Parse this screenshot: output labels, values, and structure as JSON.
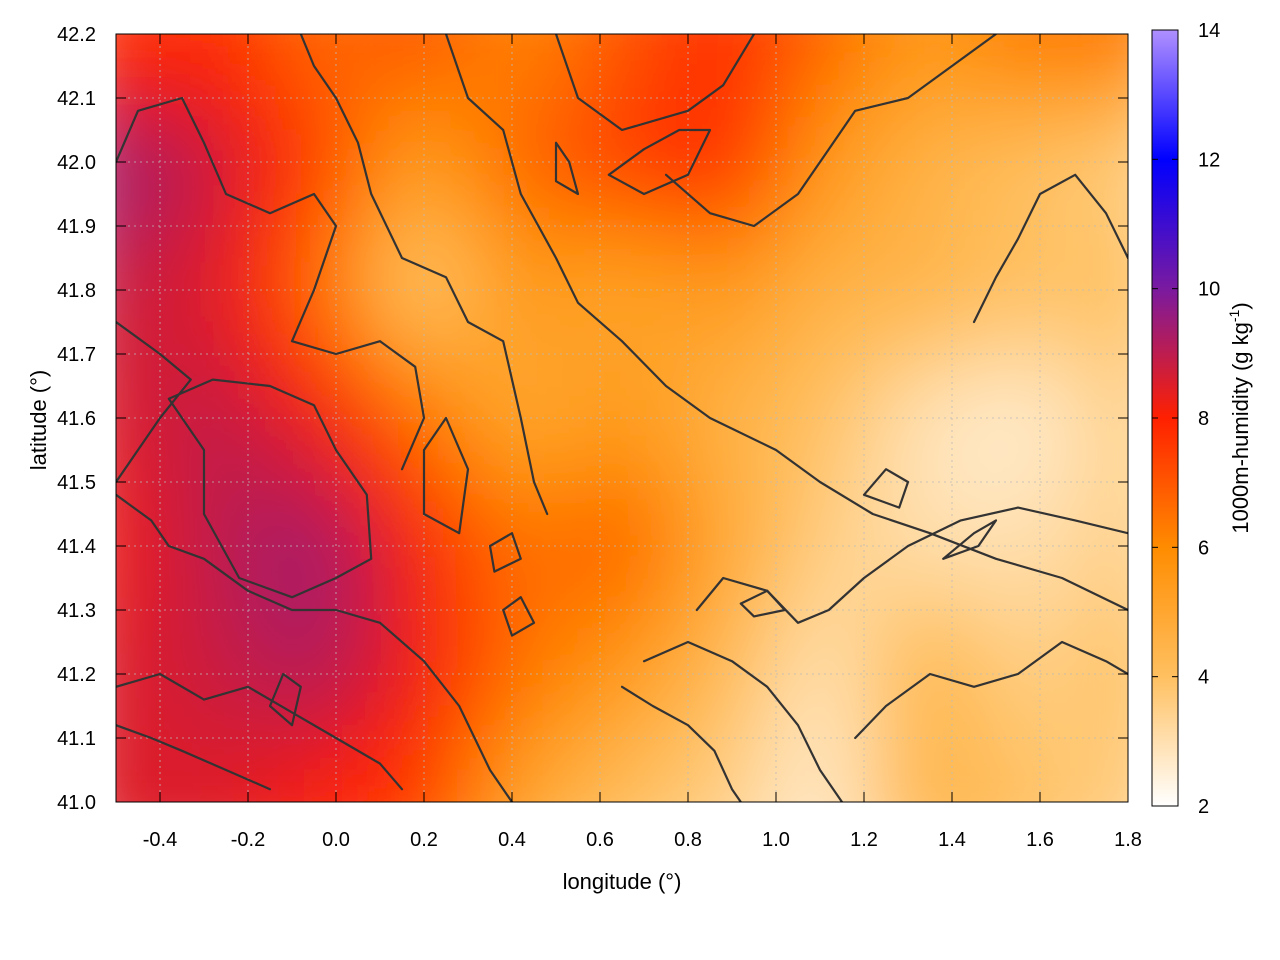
{
  "chart_data": {
    "type": "heatmap",
    "title": "",
    "xlabel": "longitude (°)",
    "ylabel": "latitude (°)",
    "colorbar_label": "1000m-humidity (g kg",
    "colorbar_label_sup": "-1",
    "colorbar_label_end": ")",
    "xlim": [
      -0.5,
      1.8
    ],
    "ylim": [
      41.0,
      42.2
    ],
    "clim": [
      2,
      14
    ],
    "x_ticks": [
      "-0.4",
      "-0.2",
      "0.0",
      "0.2",
      "0.4",
      "0.6",
      "0.8",
      "1.0",
      "1.2",
      "1.4",
      "1.6",
      "1.8"
    ],
    "x_tick_values": [
      -0.4,
      -0.2,
      0.0,
      0.2,
      0.4,
      0.6,
      0.8,
      1.0,
      1.2,
      1.4,
      1.6,
      1.8
    ],
    "y_ticks": [
      "41.0",
      "41.1",
      "41.2",
      "41.3",
      "41.4",
      "41.5",
      "41.6",
      "41.7",
      "41.8",
      "41.9",
      "42.0",
      "42.1",
      "42.2"
    ],
    "y_tick_values": [
      41.0,
      41.1,
      41.2,
      41.3,
      41.4,
      41.5,
      41.6,
      41.7,
      41.8,
      41.9,
      42.0,
      42.1,
      42.2
    ],
    "colorbar_ticks": [
      "2",
      "4",
      "6",
      "8",
      "10",
      "12",
      "14"
    ],
    "colorbar_tick_values": [
      2,
      4,
      6,
      8,
      10,
      12,
      14
    ],
    "colormap": [
      {
        "value": 2,
        "color": "#ffffff"
      },
      {
        "value": 4,
        "color": "#ffc060"
      },
      {
        "value": 6,
        "color": "#ff8c00"
      },
      {
        "value": 8,
        "color": "#ff2000"
      },
      {
        "value": 10,
        "color": "#7a1aa0"
      },
      {
        "value": 12,
        "color": "#0000ff"
      },
      {
        "value": 14,
        "color": "#b090ff"
      }
    ],
    "grid": true,
    "contour_color": "#333333",
    "humidity_field": {
      "lon": [
        -0.5,
        -0.27,
        -0.04,
        0.19,
        0.42,
        0.65,
        0.88,
        1.11,
        1.34,
        1.57,
        1.8
      ],
      "lat": [
        42.2,
        42.0,
        41.8,
        41.6,
        41.4,
        41.2,
        41.0
      ],
      "values": [
        [
          7.5,
          7.8,
          6.5,
          7.2,
          6.0,
          7.0,
          7.8,
          6.8,
          5.5,
          6.5,
          6.5
        ],
        [
          9.5,
          8.8,
          7.5,
          5.2,
          6.8,
          7.5,
          8.0,
          5.5,
          4.5,
          4.0,
          3.5
        ],
        [
          8.8,
          8.5,
          6.5,
          3.5,
          5.5,
          5.0,
          5.5,
          4.5,
          4.5,
          4.0,
          4.0
        ],
        [
          8.5,
          9.0,
          8.2,
          6.5,
          4.8,
          5.5,
          4.5,
          4.0,
          2.8,
          2.5,
          3.5
        ],
        [
          8.2,
          9.0,
          9.5,
          8.0,
          6.5,
          7.0,
          5.0,
          3.5,
          3.0,
          3.0,
          3.5
        ],
        [
          8.5,
          8.8,
          9.2,
          8.2,
          6.5,
          5.5,
          4.2,
          2.8,
          4.5,
          3.5,
          4.0
        ],
        [
          8.5,
          8.5,
          8.0,
          7.5,
          5.0,
          4.0,
          3.5,
          2.5,
          4.5,
          4.0,
          3.5
        ]
      ]
    },
    "contours": [
      [
        [
          -0.5,
          41.18
        ],
        [
          -0.4,
          41.2
        ],
        [
          -0.3,
          41.16
        ],
        [
          -0.2,
          41.18
        ],
        [
          -0.1,
          41.14
        ],
        [
          0.0,
          41.1
        ],
        [
          0.1,
          41.06
        ],
        [
          0.15,
          41.02
        ]
      ],
      [
        [
          -0.5,
          41.12
        ],
        [
          -0.42,
          41.1
        ],
        [
          -0.35,
          41.08
        ],
        [
          -0.25,
          41.05
        ],
        [
          -0.15,
          41.02
        ]
      ],
      [
        [
          -0.5,
          41.48
        ],
        [
          -0.42,
          41.44
        ],
        [
          -0.38,
          41.4
        ],
        [
          -0.3,
          41.38
        ],
        [
          -0.2,
          41.33
        ],
        [
          -0.1,
          41.3
        ],
        [
          0.0,
          41.3
        ],
        [
          0.1,
          41.28
        ],
        [
          0.2,
          41.22
        ],
        [
          0.28,
          41.15
        ],
        [
          0.35,
          41.05
        ],
        [
          0.4,
          41.0
        ]
      ],
      [
        [
          -0.38,
          41.63
        ],
        [
          -0.3,
          41.55
        ],
        [
          -0.3,
          41.45
        ],
        [
          -0.22,
          41.35
        ],
        [
          -0.1,
          41.32
        ],
        [
          0.0,
          41.35
        ],
        [
          0.08,
          41.38
        ],
        [
          0.07,
          41.48
        ],
        [
          0.0,
          41.55
        ],
        [
          -0.05,
          41.62
        ],
        [
          -0.15,
          41.65
        ],
        [
          -0.28,
          41.66
        ],
        [
          -0.38,
          41.63
        ]
      ],
      [
        [
          -0.5,
          41.75
        ],
        [
          -0.4,
          41.7
        ],
        [
          -0.33,
          41.66
        ],
        [
          -0.4,
          41.6
        ],
        [
          -0.45,
          41.55
        ],
        [
          -0.5,
          41.5
        ]
      ],
      [
        [
          -0.5,
          42.0
        ],
        [
          -0.45,
          42.08
        ],
        [
          -0.35,
          42.1
        ],
        [
          -0.3,
          42.03
        ],
        [
          -0.25,
          41.95
        ],
        [
          -0.15,
          41.92
        ],
        [
          -0.05,
          41.95
        ],
        [
          0.0,
          41.9
        ],
        [
          -0.05,
          41.8
        ],
        [
          -0.1,
          41.72
        ],
        [
          0.0,
          41.7
        ],
        [
          0.1,
          41.72
        ],
        [
          0.18,
          41.68
        ],
        [
          0.2,
          41.6
        ],
        [
          0.15,
          41.52
        ]
      ],
      [
        [
          -0.08,
          42.2
        ],
        [
          -0.05,
          42.15
        ],
        [
          0.0,
          42.1
        ],
        [
          0.05,
          42.03
        ],
        [
          0.08,
          41.95
        ],
        [
          0.15,
          41.85
        ],
        [
          0.25,
          41.82
        ],
        [
          0.3,
          41.75
        ],
        [
          0.38,
          41.72
        ],
        [
          0.42,
          41.6
        ],
        [
          0.45,
          41.5
        ],
        [
          0.48,
          41.45
        ]
      ],
      [
        [
          0.25,
          42.2
        ],
        [
          0.3,
          42.1
        ],
        [
          0.38,
          42.05
        ],
        [
          0.42,
          41.95
        ],
        [
          0.5,
          41.85
        ],
        [
          0.55,
          41.78
        ],
        [
          0.65,
          41.72
        ],
        [
          0.75,
          41.65
        ],
        [
          0.85,
          41.6
        ],
        [
          1.0,
          41.55
        ],
        [
          1.1,
          41.5
        ],
        [
          1.22,
          41.45
        ],
        [
          1.35,
          41.42
        ],
        [
          1.5,
          41.38
        ],
        [
          1.65,
          41.35
        ],
        [
          1.8,
          41.3
        ]
      ],
      [
        [
          0.5,
          42.2
        ],
        [
          0.55,
          42.1
        ],
        [
          0.65,
          42.05
        ],
        [
          0.8,
          42.08
        ],
        [
          0.88,
          42.12
        ],
        [
          0.95,
          42.2
        ]
      ],
      [
        [
          0.75,
          41.98
        ],
        [
          0.85,
          41.92
        ],
        [
          0.95,
          41.9
        ],
        [
          1.05,
          41.95
        ],
        [
          1.12,
          42.02
        ],
        [
          1.18,
          42.08
        ],
        [
          1.3,
          42.1
        ],
        [
          1.4,
          42.15
        ],
        [
          1.5,
          42.2
        ]
      ],
      [
        [
          0.82,
          41.3
        ],
        [
          0.88,
          41.35
        ],
        [
          0.98,
          41.33
        ],
        [
          1.05,
          41.28
        ],
        [
          1.12,
          41.3
        ],
        [
          1.2,
          41.35
        ],
        [
          1.3,
          41.4
        ],
        [
          1.42,
          41.44
        ],
        [
          1.55,
          41.46
        ],
        [
          1.68,
          41.44
        ],
        [
          1.8,
          41.42
        ]
      ],
      [
        [
          0.7,
          41.22
        ],
        [
          0.8,
          41.25
        ],
        [
          0.9,
          41.22
        ],
        [
          0.98,
          41.18
        ],
        [
          1.05,
          41.12
        ],
        [
          1.1,
          41.05
        ],
        [
          1.15,
          41.0
        ]
      ],
      [
        [
          0.65,
          41.18
        ],
        [
          0.72,
          41.15
        ],
        [
          0.8,
          41.12
        ],
        [
          0.86,
          41.08
        ],
        [
          0.9,
          41.02
        ],
        [
          0.92,
          41.0
        ]
      ],
      [
        [
          1.18,
          41.1
        ],
        [
          1.25,
          41.15
        ],
        [
          1.35,
          41.2
        ],
        [
          1.45,
          41.18
        ],
        [
          1.55,
          41.2
        ],
        [
          1.65,
          41.25
        ],
        [
          1.75,
          41.22
        ],
        [
          1.8,
          41.2
        ]
      ],
      [
        [
          1.45,
          41.75
        ],
        [
          1.5,
          41.82
        ],
        [
          1.55,
          41.88
        ],
        [
          1.6,
          41.95
        ],
        [
          1.68,
          41.98
        ],
        [
          1.75,
          41.92
        ],
        [
          1.8,
          41.85
        ]
      ],
      [
        [
          1.2,
          41.48
        ],
        [
          1.25,
          41.52
        ],
        [
          1.3,
          41.5
        ],
        [
          1.28,
          41.46
        ],
        [
          1.2,
          41.48
        ]
      ],
      [
        [
          1.38,
          41.38
        ],
        [
          1.45,
          41.42
        ],
        [
          1.5,
          41.44
        ],
        [
          1.46,
          41.4
        ],
        [
          1.38,
          41.38
        ]
      ],
      [
        [
          0.92,
          41.31
        ],
        [
          0.98,
          41.33
        ],
        [
          1.02,
          41.3
        ],
        [
          0.95,
          41.29
        ],
        [
          0.92,
          41.31
        ]
      ],
      [
        [
          0.2,
          41.55
        ],
        [
          0.25,
          41.6
        ],
        [
          0.3,
          41.52
        ],
        [
          0.28,
          41.42
        ],
        [
          0.2,
          41.45
        ],
        [
          0.2,
          41.55
        ]
      ],
      [
        [
          0.35,
          41.4
        ],
        [
          0.4,
          41.42
        ],
        [
          0.42,
          41.38
        ],
        [
          0.36,
          41.36
        ],
        [
          0.35,
          41.4
        ]
      ],
      [
        [
          0.38,
          41.3
        ],
        [
          0.42,
          41.32
        ],
        [
          0.45,
          41.28
        ],
        [
          0.4,
          41.26
        ],
        [
          0.38,
          41.3
        ]
      ],
      [
        [
          0.5,
          42.03
        ],
        [
          0.53,
          42.0
        ],
        [
          0.55,
          41.95
        ],
        [
          0.5,
          41.97
        ],
        [
          0.5,
          42.03
        ]
      ],
      [
        [
          -0.12,
          41.2
        ],
        [
          -0.08,
          41.18
        ],
        [
          -0.1,
          41.12
        ],
        [
          -0.15,
          41.15
        ],
        [
          -0.12,
          41.2
        ]
      ],
      [
        [
          0.62,
          41.98
        ],
        [
          0.7,
          42.02
        ],
        [
          0.78,
          42.05
        ],
        [
          0.85,
          42.05
        ],
        [
          0.8,
          41.98
        ],
        [
          0.7,
          41.95
        ],
        [
          0.62,
          41.98
        ]
      ]
    ]
  }
}
